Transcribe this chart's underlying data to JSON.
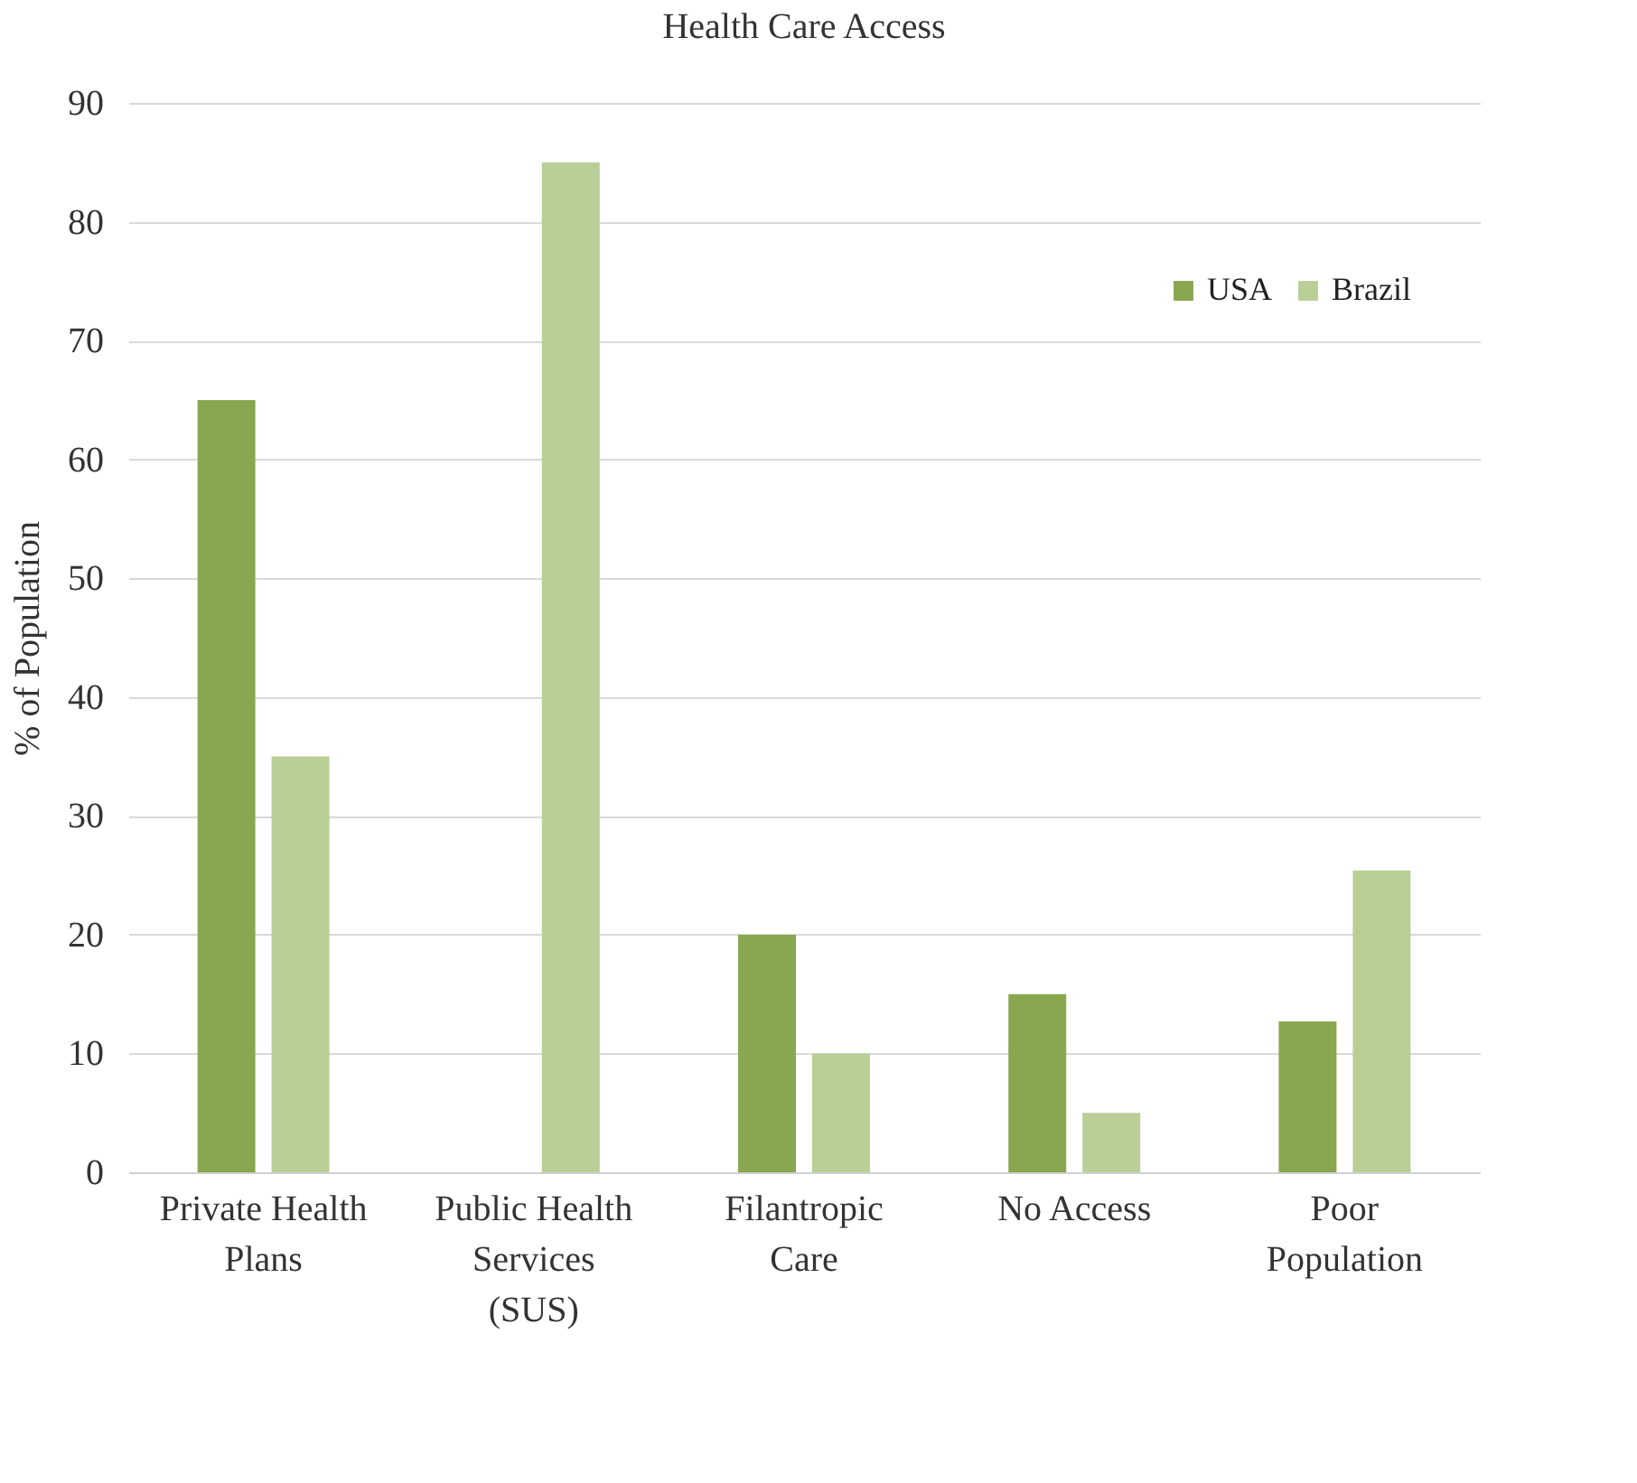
{
  "chart_data": {
    "type": "bar",
    "title": "Health Care Access",
    "ylabel": "% of Population",
    "categories": [
      "Private Health\nPlans",
      "Public Health\nServices\n(SUS)",
      "Filantropic\nCare",
      "No Access",
      "Poor\nPopulation"
    ],
    "series": [
      {
        "name": "USA",
        "color": "#88a74e",
        "values": [
          65,
          null,
          20,
          15,
          12.7
        ]
      },
      {
        "name": "Brazil",
        "color": "#b9cf96",
        "values": [
          35,
          85,
          10,
          5,
          25.4
        ]
      }
    ],
    "ylim": [
      0,
      90
    ],
    "yticks": [
      0,
      10,
      20,
      30,
      40,
      50,
      60,
      70,
      80,
      90
    ],
    "grid": "y",
    "legend": "top right"
  }
}
